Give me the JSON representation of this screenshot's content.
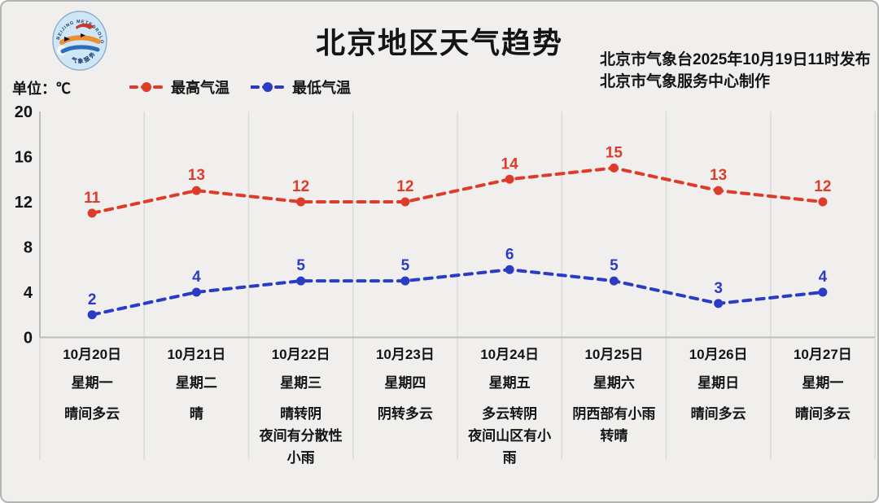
{
  "header": {
    "title": "北京地区天气趋势",
    "publisher_line1": "北京市气象台2025年10月19日11时发布",
    "publisher_line2": "北京市气象服务中心制作",
    "unit_label": "单位：℃"
  },
  "colors": {
    "high_temp": "#dd3c2a",
    "low_temp": "#2b3cc4",
    "background": "#f0efed",
    "grid": "#dadad8",
    "axis": "#bcbcba",
    "text": "#141414"
  },
  "legend": [
    {
      "label": "最高气温",
      "color": "#dd3c2a"
    },
    {
      "label": "最低气温",
      "color": "#2b3cc4"
    }
  ],
  "chart_data": {
    "type": "line",
    "title": "北京地区天气趋势",
    "unit": "℃",
    "categories": [
      "10月20日",
      "10月21日",
      "10月22日",
      "10月23日",
      "10月24日",
      "10月25日",
      "10月26日",
      "10月27日"
    ],
    "series": [
      {
        "name": "最高气温",
        "color": "#dd3c2a",
        "values": [
          11,
          13,
          12,
          12,
          14,
          15,
          13,
          12
        ]
      },
      {
        "name": "最低气温",
        "color": "#2b3cc4",
        "values": [
          2,
          4,
          5,
          5,
          6,
          5,
          3,
          4
        ]
      }
    ],
    "ylim": [
      0,
      20
    ],
    "yticks": [
      0,
      4,
      8,
      12,
      16,
      20
    ],
    "grid": "vertical",
    "line_style": "dashed",
    "legend_position": "top-left"
  },
  "days": [
    {
      "date": "10月20日",
      "weekday": "星期一",
      "weather": "晴间多云"
    },
    {
      "date": "10月21日",
      "weekday": "星期二",
      "weather": "晴"
    },
    {
      "date": "10月22日",
      "weekday": "星期三",
      "weather": "晴转阴\n夜间有分散性\n小雨"
    },
    {
      "date": "10月23日",
      "weekday": "星期四",
      "weather": "阴转多云"
    },
    {
      "date": "10月24日",
      "weekday": "星期五",
      "weather": "多云转阴\n夜间山区有小\n雨"
    },
    {
      "date": "10月25日",
      "weekday": "星期六",
      "weather": "阴西部有小雨\n转晴"
    },
    {
      "date": "10月26日",
      "weekday": "星期日",
      "weather": "晴间多云"
    },
    {
      "date": "10月27日",
      "weekday": "星期一",
      "weather": "晴间多云"
    }
  ]
}
